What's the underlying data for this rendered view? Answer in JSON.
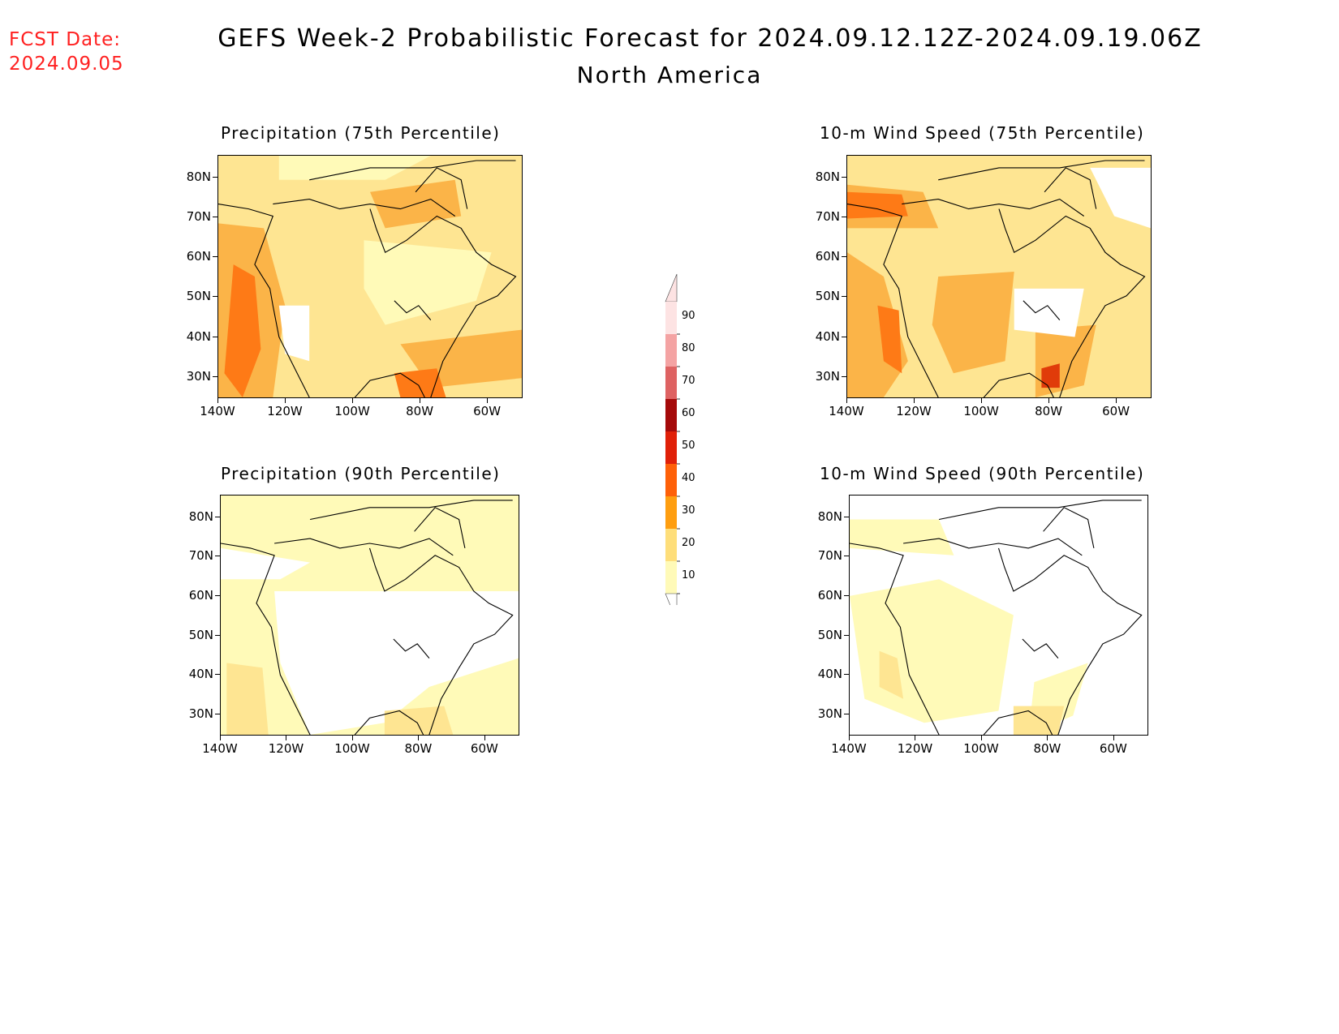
{
  "header": {
    "fcst_label": "FCST Date:",
    "fcst_date": "2024.09.05",
    "title": "GEFS Week-2 Probabilistic Forecast for 2024.09.12.12Z-2024.09.19.06Z",
    "subtitle": "North America"
  },
  "panels": [
    {
      "title": "Precipitation (75th Percentile)"
    },
    {
      "title": "10-m Wind Speed (75th Percentile)"
    },
    {
      "title": "Precipitation (90th Percentile)"
    },
    {
      "title": "10-m Wind Speed (90th Percentile)"
    }
  ],
  "axes": {
    "lat_labels": [
      "80N",
      "70N",
      "60N",
      "50N",
      "40N",
      "30N"
    ],
    "lon_labels": [
      "140W",
      "120W",
      "100W",
      "80W",
      "60W"
    ]
  },
  "colorbar": {
    "levels": [
      "90",
      "80",
      "70",
      "60",
      "50",
      "40",
      "30",
      "20",
      "10"
    ],
    "colors": [
      "#fde3e3",
      "#f4a3a3",
      "#de6262",
      "#a50a0a",
      "#e02008",
      "#fe6008",
      "#fe9e10",
      "#fede7a",
      "#fffab8"
    ]
  },
  "colors": {
    "title_red": "#ff2020",
    "shade_light": "#fffab8",
    "shade_yellow": "#fee592",
    "shade_orange": "#fbb448",
    "shade_dark_orange": "#fe7a16",
    "shade_red": "#e03b0a"
  }
}
